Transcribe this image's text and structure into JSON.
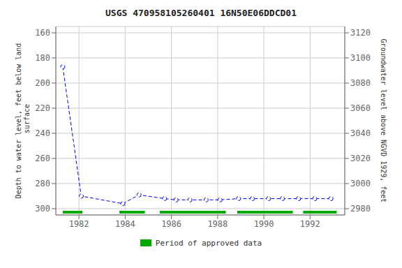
{
  "chart_data": {
    "type": "line",
    "title": "USGS 470958105260401 16N50E06DDCD01",
    "y_label": "Depth to water level, feet below land\n surface",
    "y2_label": "Groundwater level above NGVD 1929, feet",
    "x": [
      1981.3,
      1982.1,
      1983.9,
      1984.6,
      1985.7,
      1986.2,
      1986.8,
      1987.5,
      1988.1,
      1988.9,
      1989.5,
      1990.2,
      1990.8,
      1991.5,
      1992.2,
      1992.9
    ],
    "series": [
      {
        "type": "line",
        "color": "#0000FF",
        "marker": "circle",
        "line_style": "dashed",
        "values": [
          187,
          290,
          296,
          289,
          292,
          293,
          293,
          293,
          293,
          292,
          292,
          292,
          292,
          292,
          292,
          292
        ]
      },
      {
        "type": "range",
        "name": "Period of approved data",
        "color": "#00AA00",
        "periods": [
          [
            1981.3,
            1982.15
          ],
          [
            1983.75,
            1984.85
          ],
          [
            1985.5,
            1988.35
          ],
          [
            1988.85,
            1991.25
          ],
          [
            1991.7,
            1993.15
          ]
        ]
      }
    ],
    "xlim": [
      1981.0,
      1993.5
    ],
    "xticks": [
      1982,
      1984,
      1986,
      1988,
      1990,
      1992
    ],
    "ylim": [
      305,
      155
    ],
    "yticks": [
      160,
      180,
      200,
      220,
      240,
      260,
      280,
      300
    ],
    "y2lim": [
      2975,
      3125
    ],
    "y2ticks": [
      3120,
      3100,
      3080,
      3060,
      3040,
      3020,
      3000,
      2980
    ],
    "grid": true
  }
}
